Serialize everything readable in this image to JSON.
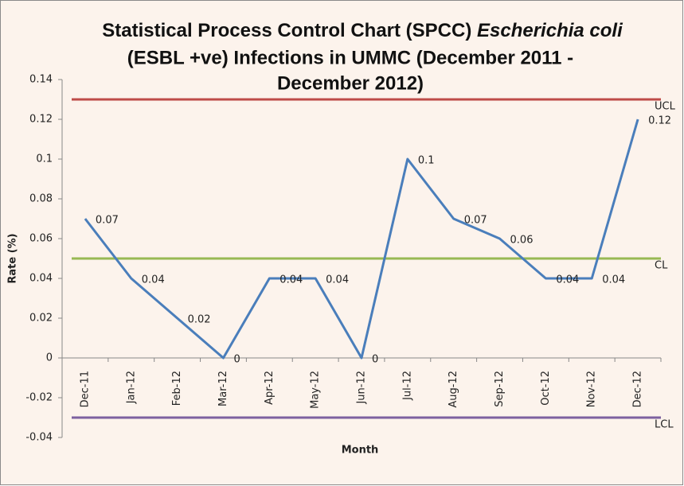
{
  "chart_data": {
    "type": "line",
    "title": {
      "line1": "Statistical Process Control Chart (SPCC) ",
      "italic": "Escherichia coli",
      "line2": "(ESBL +ve) Infections in UMMC (December 2011 -",
      "line3": "December 2012)"
    },
    "x_label": "Month",
    "y_label": "Rate (%)",
    "categories": [
      "Dec-11",
      "Jan-12",
      "Feb-12",
      "Mar-12",
      "Apr-12",
      "May-12",
      "Jun-12",
      "Jul-12",
      "Aug-12",
      "Sep-12",
      "Oct-12",
      "Nov-12",
      "Dec-12"
    ],
    "series": [
      {
        "name": "Rate",
        "color": "#4a7ebb",
        "values": [
          0.07,
          0.04,
          0.02,
          0,
          0.04,
          0.04,
          0,
          0.1,
          0.07,
          0.06,
          0.04,
          0.04,
          0.12
        ]
      }
    ],
    "limits": [
      {
        "name": "UCL",
        "value": 0.13,
        "color": "#be4b48"
      },
      {
        "name": "CL",
        "value": 0.05,
        "color": "#98b954"
      },
      {
        "name": "LCL",
        "value": -0.03,
        "color": "#7d60a0"
      }
    ],
    "ylim": [
      -0.04,
      0.14
    ],
    "yticks": [
      -0.04,
      -0.02,
      0,
      0.02,
      0.04,
      0.06,
      0.08,
      0.1,
      0.12,
      0.14
    ],
    "grid": false
  }
}
